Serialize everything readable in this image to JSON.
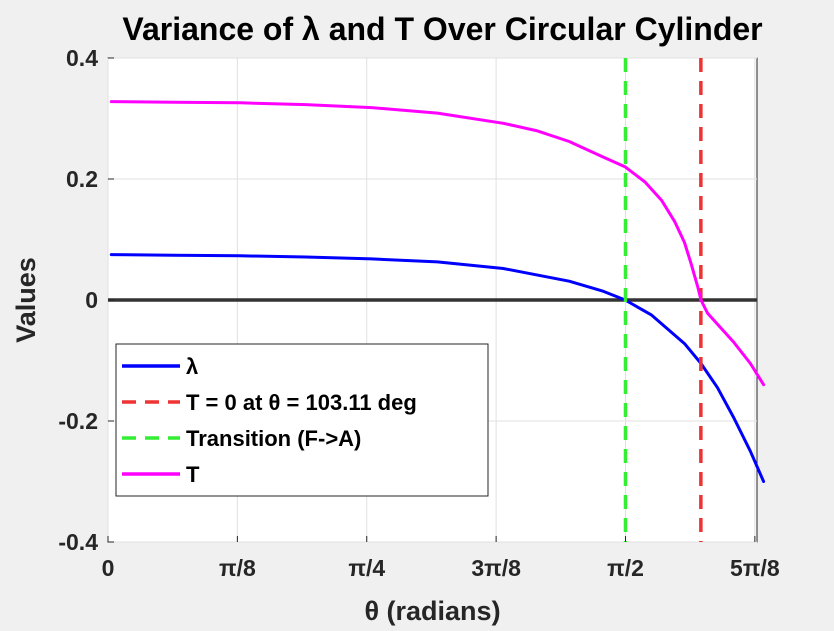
{
  "chart_data": {
    "type": "line",
    "title": "Variance of λ and T Over Circular Cylinder",
    "xlabel": "θ (radians)",
    "ylabel": "Values",
    "xlim": [
      0,
      1.97
    ],
    "ylim": [
      -0.4,
      0.4
    ],
    "grid": true,
    "legend_position": "bottom-left",
    "xticks": [
      {
        "value": 0,
        "label": "0"
      },
      {
        "value": 0.3927,
        "label": "π/8"
      },
      {
        "value": 0.7854,
        "label": "π/4"
      },
      {
        "value": 1.1781,
        "label": "3π/8"
      },
      {
        "value": 1.5708,
        "label": "π/2"
      },
      {
        "value": 1.9635,
        "label": "5π/8"
      }
    ],
    "yticks": [
      {
        "value": -0.4,
        "label": "-0.4"
      },
      {
        "value": -0.2,
        "label": "-0.2"
      },
      {
        "value": 0,
        "label": "0"
      },
      {
        "value": 0.2,
        "label": "0.2"
      },
      {
        "value": 0.4,
        "label": "0.4"
      }
    ],
    "series": [
      {
        "name": "λ",
        "color": "#0000ff",
        "x": [
          0.01,
          0.2,
          0.4,
          0.6,
          0.8,
          1.0,
          1.2,
          1.4,
          1.5,
          1.57,
          1.65,
          1.75,
          1.8,
          1.85,
          1.9,
          1.95,
          1.99
        ],
        "y": [
          0.075,
          0.074,
          0.073,
          0.071,
          0.068,
          0.063,
          0.052,
          0.031,
          0.015,
          0.0,
          -0.025,
          -0.072,
          -0.105,
          -0.145,
          -0.195,
          -0.25,
          -0.3
        ]
      },
      {
        "name": "T = 0 at θ = 103.11 deg",
        "color": "#ee3333",
        "style": "dashed",
        "vertical_x": 1.7996
      },
      {
        "name": "Transition (F->A)",
        "color": "#33ee33",
        "style": "dashed",
        "vertical_x": 1.5708
      },
      {
        "name": "T",
        "color": "#ff00ff",
        "x": [
          0.01,
          0.2,
          0.4,
          0.6,
          0.8,
          1.0,
          1.2,
          1.3,
          1.4,
          1.5,
          1.57,
          1.63,
          1.68,
          1.72,
          1.75,
          1.77,
          1.79,
          1.8,
          1.82,
          1.85,
          1.9,
          1.95,
          1.99
        ],
        "y": [
          0.328,
          0.327,
          0.326,
          0.323,
          0.318,
          0.309,
          0.292,
          0.28,
          0.262,
          0.237,
          0.22,
          0.195,
          0.165,
          0.13,
          0.095,
          0.06,
          0.022,
          0.0,
          -0.022,
          -0.04,
          -0.07,
          -0.105,
          -0.14
        ]
      }
    ],
    "reference_line": {
      "y": 0,
      "color": "#333333"
    }
  }
}
